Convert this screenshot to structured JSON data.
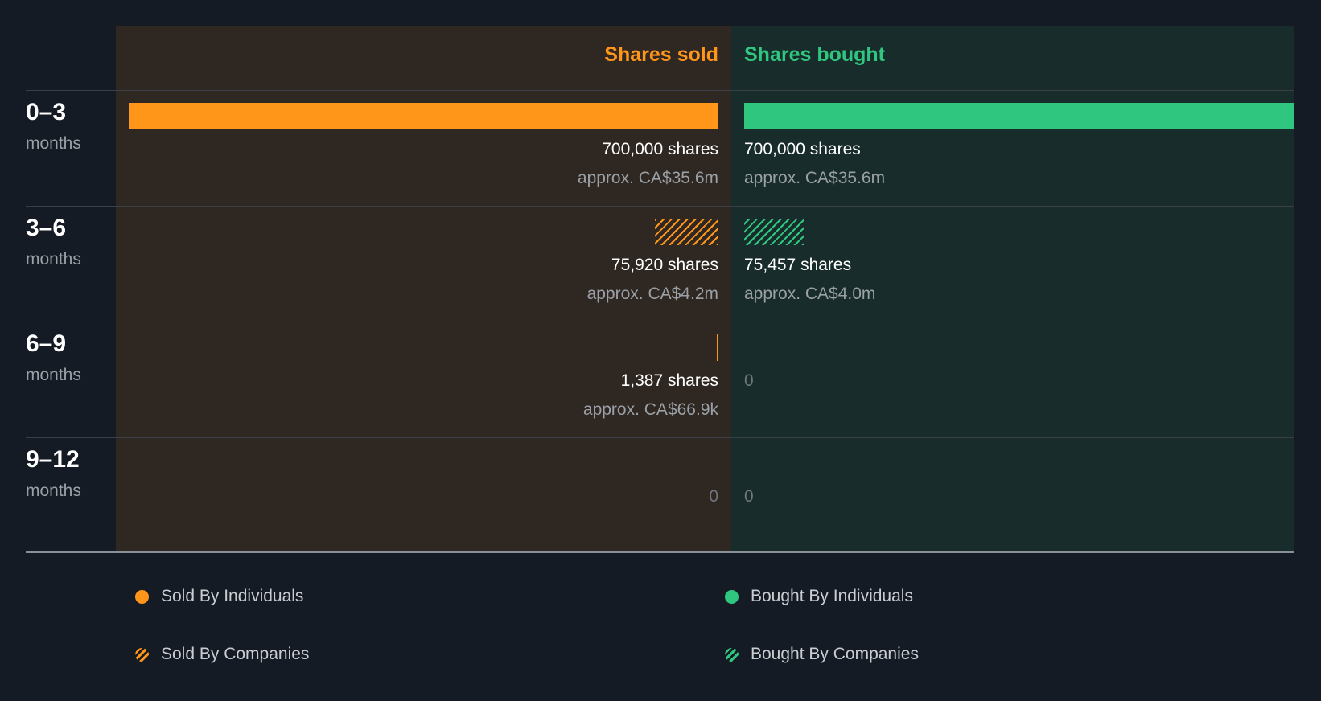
{
  "chart_data": {
    "type": "bar",
    "layout": "diverging-horizontal",
    "headers": {
      "sold": "Shares sold",
      "bought": "Shares bought"
    },
    "period_unit": "months",
    "periods": [
      {
        "range": "0–3",
        "sold": {
          "kind": "individuals",
          "shares": 700000,
          "shares_label": "700,000 shares",
          "approx": "approx. CA$35.6m"
        },
        "bought": {
          "kind": "individuals",
          "shares": 700000,
          "shares_label": "700,000 shares",
          "approx": "approx. CA$35.6m"
        }
      },
      {
        "range": "3–6",
        "sold": {
          "kind": "companies",
          "shares": 75920,
          "shares_label": "75,920 shares",
          "approx": "approx. CA$4.2m"
        },
        "bought": {
          "kind": "companies",
          "shares": 75457,
          "shares_label": "75,457 shares",
          "approx": "approx. CA$4.0m"
        }
      },
      {
        "range": "6–9",
        "sold": {
          "kind": "individuals",
          "shares": 1387,
          "shares_label": "1,387 shares",
          "approx": "approx. CA$66.9k"
        },
        "bought": {
          "kind": "none",
          "shares": 0,
          "zero_label": "0"
        }
      },
      {
        "range": "9–12",
        "sold": {
          "kind": "none",
          "shares": 0,
          "zero_label": "0"
        },
        "bought": {
          "kind": "none",
          "shares": 0,
          "zero_label": "0"
        }
      }
    ],
    "legend": [
      {
        "label": "Sold By Individuals",
        "style": "solid-sold"
      },
      {
        "label": "Bought By Individuals",
        "style": "solid-bought"
      },
      {
        "label": "Sold By Companies",
        "style": "hatch-sold"
      },
      {
        "label": "Bought By Companies",
        "style": "hatch-bought"
      }
    ],
    "colors": {
      "sold": "#ff9519",
      "bought": "#2fc77f",
      "background": "#151b24"
    }
  }
}
